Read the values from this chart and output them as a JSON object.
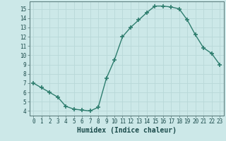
{
  "x": [
    0,
    1,
    2,
    3,
    4,
    5,
    6,
    7,
    8,
    9,
    10,
    11,
    12,
    13,
    14,
    15,
    16,
    17,
    18,
    19,
    20,
    21,
    22,
    23
  ],
  "y": [
    7.0,
    6.5,
    6.0,
    5.5,
    4.5,
    4.2,
    4.1,
    4.0,
    4.4,
    7.5,
    9.5,
    12.0,
    13.0,
    13.8,
    14.6,
    15.3,
    15.3,
    15.2,
    15.0,
    13.8,
    12.2,
    10.8,
    10.2,
    9.0
  ],
  "xlabel": "Humidex (Indice chaleur)",
  "line_color": "#2e7d6e",
  "marker": "+",
  "bg_color": "#cce8e8",
  "grid_color": "#b8d8d8",
  "tick_label_color": "#1a4a4a",
  "ylim": [
    3.5,
    15.8
  ],
  "xlim": [
    -0.5,
    23.5
  ],
  "yticks": [
    4,
    5,
    6,
    7,
    8,
    9,
    10,
    11,
    12,
    13,
    14,
    15
  ],
  "xticks": [
    0,
    1,
    2,
    3,
    4,
    5,
    6,
    7,
    8,
    9,
    10,
    11,
    12,
    13,
    14,
    15,
    16,
    17,
    18,
    19,
    20,
    21,
    22,
    23
  ]
}
